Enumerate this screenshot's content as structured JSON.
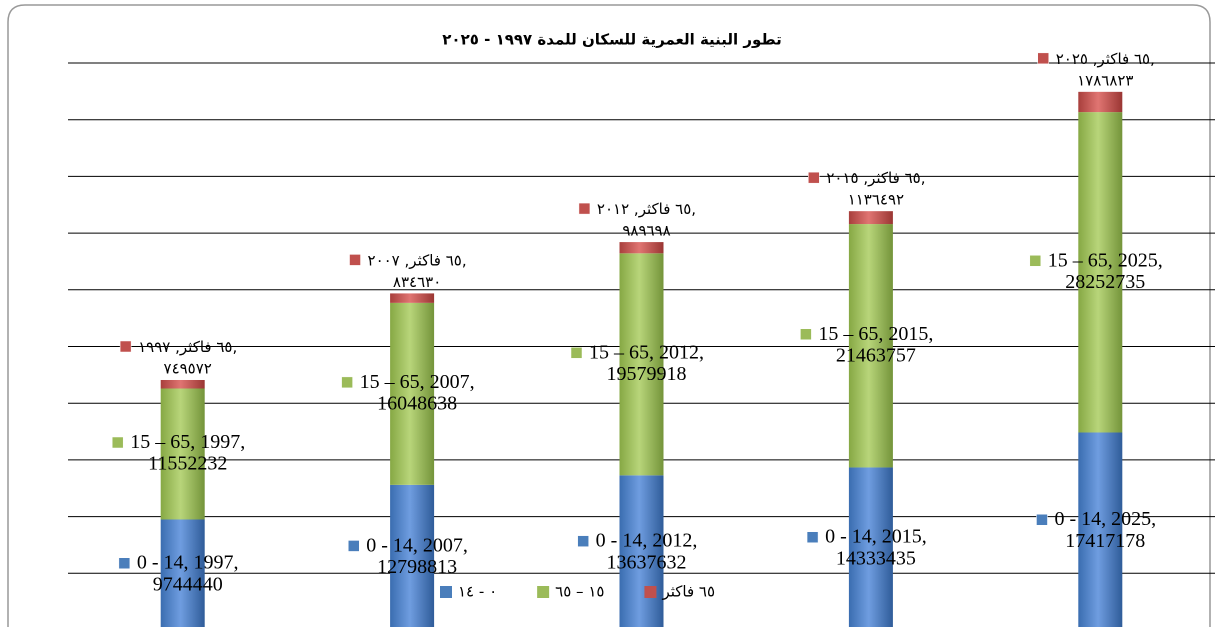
{
  "chart_data": {
    "type": "stacked_bar",
    "title": "تطور البنية العمرية للسكان للمدة ١٩٩٧ - ٢٠٢٥",
    "categories": [
      "1997",
      "2007",
      "2012",
      "2015",
      "2025"
    ],
    "series": [
      {
        "name": "٠ - ١٤",
        "label_name": "0 - 14",
        "color": "#4a7ebb",
        "values": [
          9744440,
          12798813,
          13637632,
          14333435,
          17417178
        ]
      },
      {
        "name": "١٥ – ٦٥",
        "label_name": "15 – 65",
        "color": "#9bbb59",
        "values": [
          11552232,
          16048638,
          19579918,
          21463757,
          28252735
        ]
      },
      {
        "name": "٦٥ فاكثر",
        "label_name": "٦٥ فاكثر",
        "color": "#c0504d",
        "values": [
          749572,
          834630,
          989698,
          1136492,
          1786823
        ],
        "value_labels": [
          "٧٤٩٥٧٢",
          "٨٣٤٦٣٠",
          "٩٨٩٦٩٨",
          "١١٣٦٤٩٢",
          "١٧٨٦٨٢٣"
        ],
        "category_labels": [
          "١٩٩٧",
          "٢٠٠٧",
          "٢٠١٢",
          "٢٠١٥",
          "٢٠٢٥"
        ]
      }
    ],
    "ylim": [
      0,
      50000000
    ],
    "yticks": [
      0,
      5000000,
      10000000,
      15000000,
      20000000,
      25000000,
      30000000,
      35000000,
      40000000,
      45000000,
      50000000
    ],
    "grid": true,
    "legend": "bottom"
  }
}
